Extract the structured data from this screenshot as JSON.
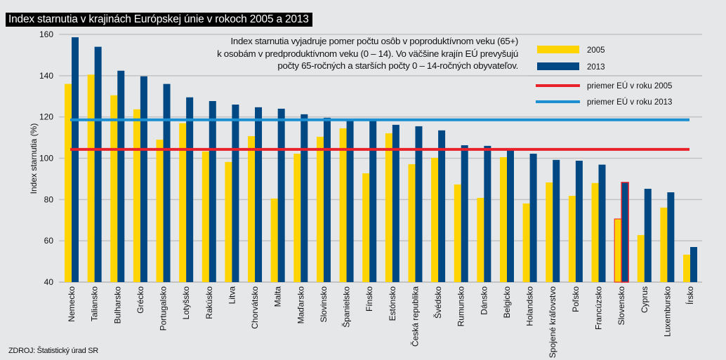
{
  "title": "Index starnutia v krajinách Európskej únie v rokoch 2005 a 2013",
  "note_lines": [
    "Index starnutia vyjadruje pomer počtu osôb v poproduktívnom veku (65+)",
    "k osobám v predproduktívnom veku (0 – 14). Vo väčšine krajín EÚ prevyšujú",
    "počty 65-ročných a starších počty 0 – 14-ročných obyvateľov."
  ],
  "source": "ZDROJ: Štatistický úrad SR",
  "colors": {
    "y2005": "#ffd400",
    "y2013": "#004883",
    "eu2005": "#e8212b",
    "eu2013": "#1b8fd2",
    "highlight": "#e8212b",
    "grid": "#c3c3c3"
  },
  "chart_data": {
    "type": "bar",
    "title": "Index starnutia v krajinách Európskej únie v rokoch 2005 a 2013",
    "xlabel": "",
    "ylabel": "Index starnutia (%)",
    "ylim": [
      40,
      160
    ],
    "yticks": [
      40,
      60,
      80,
      100,
      120,
      140,
      160
    ],
    "grid": true,
    "legend_position": "top-right",
    "categories": [
      "Nemecko",
      "Taliansko",
      "Bulharsko",
      "Grécko",
      "Portugalsko",
      "Lotyšsko",
      "Rakúsko",
      "Litva",
      "Chorvátsko",
      "Malta",
      "Maďarsko",
      "Slovinsko",
      "Španielsko",
      "Fínsko",
      "Estónsko",
      "Česká republika",
      "Švédsko",
      "Rumunsko",
      "Dánsko",
      "Belgicko",
      "Holandsko",
      "Spojené kráľovstvo",
      "Poľsko",
      "Francúzsko",
      "Slovensko",
      "Cyprus",
      "Luxembursko",
      "Írsko"
    ],
    "highlight_category": "Slovensko",
    "series": [
      {
        "name": "2005",
        "values": [
          136,
          140.5,
          130.5,
          123.7,
          109,
          117,
          103.3,
          98.2,
          110.7,
          80.5,
          102.2,
          110.4,
          114.5,
          92.7,
          112.1,
          97.1,
          100.2,
          87.3,
          80.8,
          100.5,
          78.1,
          88.3,
          81.8,
          88.0,
          70.6,
          62.8,
          76.1,
          53.3
        ]
      },
      {
        "name": "2013",
        "values": [
          158.6,
          154,
          142.4,
          139.7,
          136,
          129.5,
          127.7,
          126,
          124.7,
          124,
          121.3,
          119.6,
          118.2,
          118.2,
          116.2,
          115.5,
          113.5,
          106.3,
          106,
          104.3,
          102.2,
          99.2,
          98.8,
          96.9,
          88.3,
          85.2,
          83.5,
          57.0
        ]
      }
    ],
    "reference_lines": [
      {
        "name": "priemer EÚ v roku 2005",
        "value": 104.3
      },
      {
        "name": "priemer EÚ v roku 2013",
        "value": 118.6
      }
    ],
    "legend": [
      "2005",
      "2013",
      "priemer EÚ v roku 2005",
      "priemer EÚ v roku 2013"
    ]
  }
}
